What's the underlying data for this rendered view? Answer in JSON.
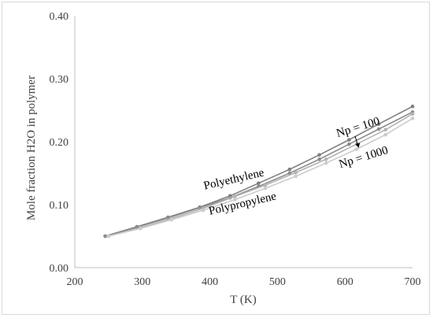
{
  "chart_data": {
    "type": "line",
    "title": "",
    "xlabel": "T (K)",
    "ylabel": "Mole fraction H2O in polymer",
    "xlim": [
      200,
      700
    ],
    "ylim": [
      0,
      0.4
    ],
    "x_ticks": [
      "200",
      "300",
      "400",
      "500",
      "600",
      "700"
    ],
    "y_ticks": [
      "0.00",
      "0.10",
      "0.20",
      "0.30",
      "0.40"
    ],
    "grid": false,
    "legend": "none",
    "annotations": {
      "polyethylene": "Polyethylene",
      "polypropylene": "Polypropylene",
      "np100": "Np = 100",
      "np1000": "Np = 1000"
    },
    "series": [
      {
        "color": "#7f7f7f",
        "marker": "circle",
        "x": [
          245,
          292,
          338,
          385,
          430,
          472,
          518,
          562,
          606,
          650,
          700
        ],
        "y": [
          0.05,
          0.065,
          0.08,
          0.096,
          0.114,
          0.134,
          0.156,
          0.179,
          0.203,
          0.228,
          0.256
        ]
      },
      {
        "color": "#8c8c8c",
        "marker": "circle",
        "x": [
          245,
          292,
          338,
          385,
          430,
          472,
          518,
          562,
          606,
          650,
          700
        ],
        "y": [
          0.05,
          0.064,
          0.079,
          0.095,
          0.111,
          0.129,
          0.15,
          0.172,
          0.196,
          0.22,
          0.247
        ]
      },
      {
        "color": "#b3b3b3",
        "marker": "circle",
        "x": [
          250,
          297,
          343,
          390,
          437,
          482,
          527,
          572,
          617,
          660,
          700
        ],
        "y": [
          0.05,
          0.063,
          0.078,
          0.094,
          0.113,
          0.131,
          0.151,
          0.172,
          0.196,
          0.219,
          0.244
        ]
      },
      {
        "color": "#cccccc",
        "marker": "circle",
        "x": [
          250,
          297,
          343,
          390,
          437,
          482,
          527,
          572,
          617,
          660,
          700
        ],
        "y": [
          0.05,
          0.062,
          0.076,
          0.091,
          0.108,
          0.126,
          0.145,
          0.166,
          0.188,
          0.211,
          0.237
        ]
      }
    ]
  }
}
